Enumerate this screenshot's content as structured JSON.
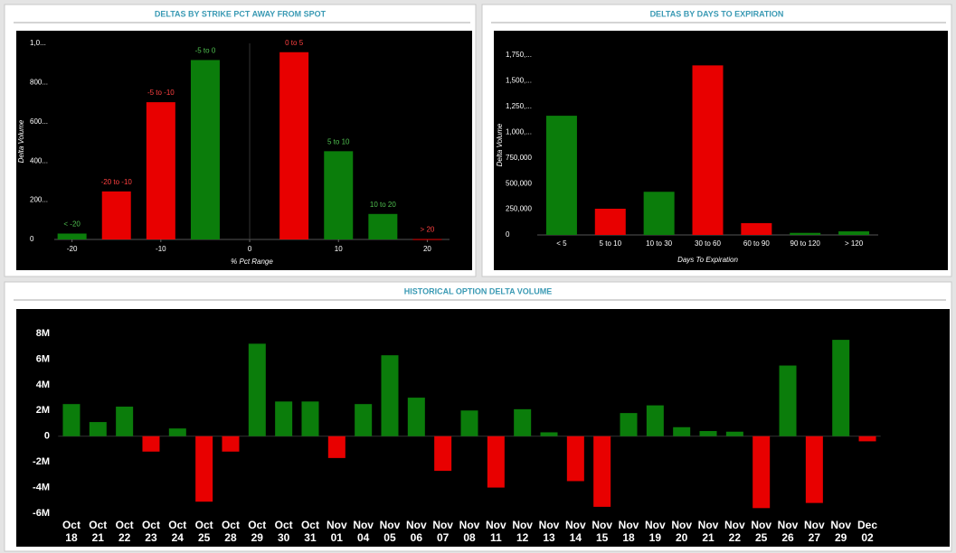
{
  "chart_data": [
    {
      "type": "bar",
      "title": "DELTAS BY STRIKE PCT AWAY FROM SPOT",
      "x_label": "% Pct Range",
      "y_label": "Delta Volume",
      "categories": [
        "< -20",
        "-20 to -10",
        "-5 to -10",
        "-5 to 0",
        "0 to 5",
        "5 to 10",
        "10 to 20",
        "> 20"
      ],
      "x": [
        -20,
        -15,
        -10,
        -5,
        5,
        10,
        15,
        20
      ],
      "values": [
        30000,
        245000,
        700000,
        915000,
        955000,
        450000,
        130000,
        2000
      ],
      "colors": [
        "#0b7d0b",
        "#e80000",
        "#e80000",
        "#0b7d0b",
        "#e80000",
        "#0b7d0b",
        "#0b7d0b",
        "#e80000"
      ],
      "xlim": [
        -22,
        22.5
      ],
      "xticks": [
        -20,
        -10,
        0,
        10,
        20
      ],
      "ylim": [
        0,
        1000000
      ],
      "yticks": [
        0,
        {
          "value": 200000,
          "label": "200..."
        },
        {
          "value": 400000,
          "label": "400..."
        },
        {
          "value": 600000,
          "label": "600..."
        },
        {
          "value": 800000,
          "label": "800..."
        },
        {
          "value": 1000000,
          "label": "1,0..."
        }
      ]
    },
    {
      "type": "bar",
      "title": "DELTAS BY DAYS TO EXPIRATION",
      "x_label": "Days To Expiration",
      "y_label": "Delta Volume",
      "categories": [
        "< 5",
        "5 to 10",
        "10 to 30",
        "30 to 60",
        "60 to 90",
        "90 to 120",
        "> 120"
      ],
      "values": [
        1160000,
        255000,
        420000,
        1650000,
        115000,
        20000,
        35000
      ],
      "colors": [
        "#0b7d0b",
        "#e80000",
        "#0b7d0b",
        "#e80000",
        "#e80000",
        "#0b7d0b",
        "#0b7d0b"
      ],
      "ylim": [
        0,
        1750000
      ],
      "yticks": [
        0,
        {
          "value": 250000,
          "label": "250,000"
        },
        {
          "value": 500000,
          "label": "500,000"
        },
        {
          "value": 750000,
          "label": "750,000"
        },
        {
          "value": 1000000,
          "label": "1,000,..."
        },
        {
          "value": 1250000,
          "label": "1,250,..."
        },
        {
          "value": 1500000,
          "label": "1,500,..."
        },
        {
          "value": 1750000,
          "label": "1,750,..."
        }
      ]
    },
    {
      "type": "bar",
      "title": "HISTORICAL OPTION DELTA VOLUME",
      "categories": [
        "Oct\n18",
        "Oct\n21",
        "Oct\n22",
        "Oct\n23",
        "Oct\n24",
        "Oct\n25",
        "Oct\n28",
        "Oct\n29",
        "Oct\n30",
        "Oct\n31",
        "Nov\n01",
        "Nov\n04",
        "Nov\n05",
        "Nov\n06",
        "Nov\n07",
        "Nov\n08",
        "Nov\n11",
        "Nov\n12",
        "Nov\n13",
        "Nov\n14",
        "Nov\n15",
        "Nov\n18",
        "Nov\n19",
        "Nov\n20",
        "Nov\n21",
        "Nov\n22",
        "Nov\n25",
        "Nov\n26",
        "Nov\n27",
        "Nov\n29",
        "Dec\n02"
      ],
      "values": [
        2500000,
        1100000,
        2300000,
        -1200000,
        600000,
        -5100000,
        -1200000,
        7200000,
        2700000,
        2700000,
        -1700000,
        2500000,
        6300000,
        3000000,
        -2700000,
        2000000,
        -4000000,
        2100000,
        300000,
        -3500000,
        -5500000,
        1800000,
        2400000,
        700000,
        400000,
        350000,
        -5600000,
        5500000,
        -5200000,
        7500000,
        -400000
      ],
      "positive_color": "#0b7d0b",
      "negative_color": "#e80000",
      "ylim": [
        -6000000,
        8000000
      ],
      "yticks": [
        {
          "value": -6000000,
          "label": "-6M"
        },
        {
          "value": -4000000,
          "label": "-4M"
        },
        {
          "value": -2000000,
          "label": "-2M"
        },
        0,
        {
          "value": 2000000,
          "label": "2M"
        },
        {
          "value": 4000000,
          "label": "4M"
        },
        {
          "value": 6000000,
          "label": "6M"
        },
        {
          "value": 8000000,
          "label": "8M"
        }
      ]
    }
  ]
}
